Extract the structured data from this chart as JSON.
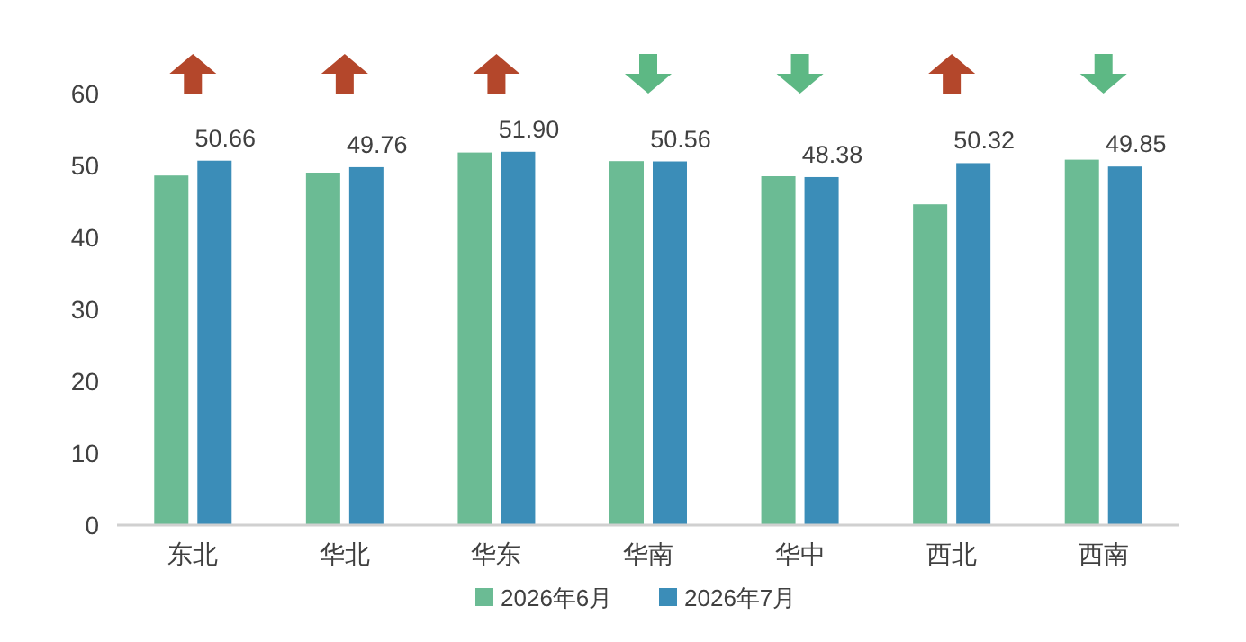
{
  "chart_data": {
    "type": "bar",
    "categories": [
      "东北",
      "华北",
      "华东",
      "华南",
      "华中",
      "西北",
      "西南"
    ],
    "series": [
      {
        "name": "2026年6月",
        "color": "#6bbb94",
        "values": [
          48.6,
          49.0,
          51.8,
          50.6,
          48.5,
          44.6,
          50.8
        ]
      },
      {
        "name": "2026年7月",
        "color": "#3b8db8",
        "values": [
          50.66,
          49.76,
          51.9,
          50.56,
          48.38,
          50.32,
          49.85
        ],
        "value_labels": [
          "50.66",
          "49.76",
          "51.90",
          "50.56",
          "48.38",
          "50.32",
          "49.85"
        ]
      }
    ],
    "ylim": [
      0,
      60
    ],
    "yticks": [
      0,
      10,
      20,
      30,
      40,
      50,
      60
    ],
    "grid": false,
    "legend": "bottom"
  }
}
